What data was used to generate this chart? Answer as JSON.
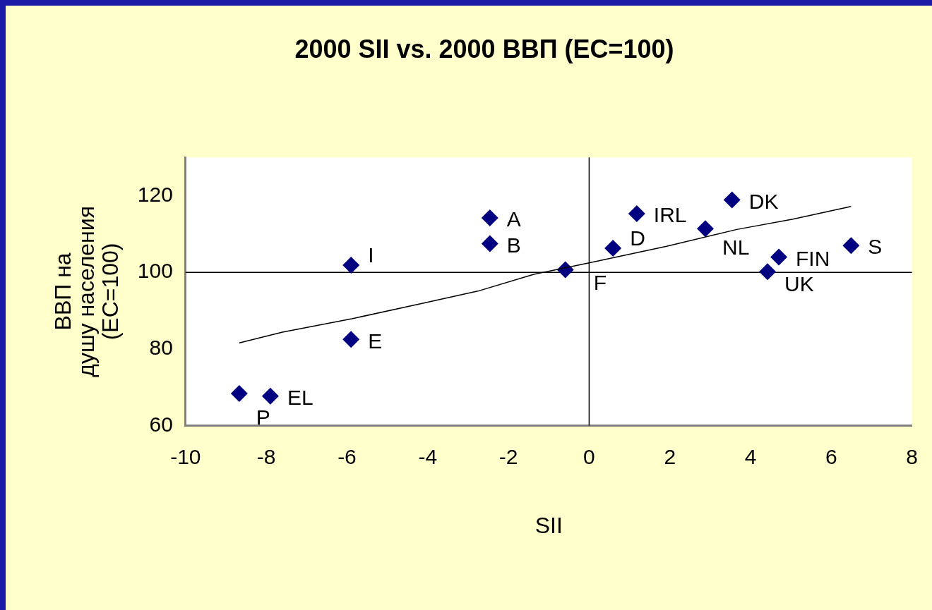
{
  "chart_data": {
    "type": "scatter",
    "title": "2000 SII vs. 2000 ВВП (EC=100)",
    "xlabel": "SII",
    "ylabel": "ВВП на\nдушу населения\n(EC=100)",
    "xlim": [
      -10,
      8
    ],
    "xticks": [
      -10,
      -8,
      -6,
      -4,
      -2,
      0,
      2,
      4,
      6,
      8
    ],
    "ylim": [
      60,
      130
    ],
    "yticks": [
      60,
      80,
      100,
      120
    ],
    "marker": "diamond",
    "legend": false,
    "ref_lines": [
      {
        "axis": "x",
        "value": 0,
        "color": "#000000"
      },
      {
        "axis": "y",
        "value": 100,
        "color": "#000000"
      }
    ],
    "series": [
      {
        "color": "#000080",
        "x": [
          -8.67,
          -7.9,
          -5.9,
          -5.9,
          -2.46,
          -2.46,
          -0.59,
          0.59,
          1.18,
          2.88,
          3.54,
          4.42,
          4.7,
          6.49
        ],
        "values": [
          68.4,
          67.7,
          82.5,
          101.9,
          114.2,
          107.5,
          100.7,
          106.3,
          115.3,
          111.4,
          118.9,
          100.2,
          104,
          107
        ]
      },
      {
        "type": "line",
        "color": "#000000",
        "marker": "none",
        "x": [
          -8.67,
          -7.6,
          -5.88,
          -4.14,
          -2.76,
          -1.37,
          0,
          1.92,
          3.66,
          5.05,
          6.49
        ],
        "values": [
          81.6,
          84.4,
          87.9,
          91.9,
          95.1,
          99.5,
          102.5,
          106.8,
          111.2,
          113.9,
          117.2
        ]
      }
    ],
    "annotations": [
      {
        "text": "P",
        "x": -8.67,
        "y": 68.4
      },
      {
        "text": "EL",
        "x": -7.9,
        "y": 67.7
      },
      {
        "text": "E",
        "x": -5.9,
        "y": 82.5
      },
      {
        "text": "I",
        "x": -5.9,
        "y": 101.9
      },
      {
        "text": "A",
        "x": -2.46,
        "y": 114.2
      },
      {
        "text": "B",
        "x": -2.46,
        "y": 107.5
      },
      {
        "text": "F",
        "x": -0.59,
        "y": 100.7
      },
      {
        "text": "D",
        "x": 0.59,
        "y": 106.3
      },
      {
        "text": "IRL",
        "x": 1.18,
        "y": 115.3
      },
      {
        "text": "NL",
        "x": 2.88,
        "y": 111.4
      },
      {
        "text": "DK",
        "x": 3.54,
        "y": 118.9
      },
      {
        "text": "UK",
        "x": 4.42,
        "y": 100.2
      },
      {
        "text": "FIN",
        "x": 4.7,
        "y": 104
      },
      {
        "text": "S",
        "x": 6.49,
        "y": 107
      }
    ]
  }
}
